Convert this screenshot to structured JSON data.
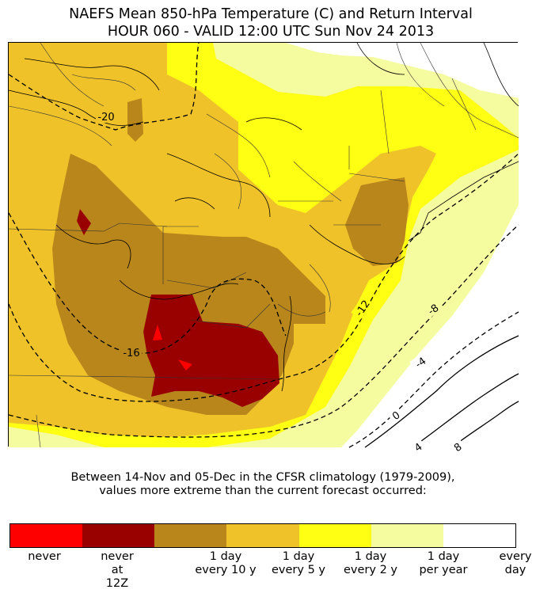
{
  "title": {
    "line1": "NAEFS Mean 850-hPa Temperature (C) and Return Interval",
    "line2": "HOUR 060 - VALID 12:00 UTC Sun Nov 24 2013"
  },
  "contour_labels": [
    "-20",
    "-16",
    "-12",
    "-8",
    "-4",
    "0",
    "4",
    "8"
  ],
  "caption": {
    "line1": "Between 14-Nov and 05-Dec in the CFSR climatology (1979-2009),",
    "line2": "values more extreme than the current forecast occurred:"
  },
  "colorbar": {
    "swatches": [
      "#ff0000",
      "#990000",
      "#b8861b",
      "#efc22a",
      "#ffff14",
      "#f5fca0",
      "#ffffff"
    ],
    "labels": [
      "never",
      "never\nat\n12Z",
      "1 day\nevery 10 y",
      "1 day\nevery 5 y",
      "1 day\nevery 2 y",
      "1 day\nper year",
      "every\nday"
    ]
  },
  "colors": {
    "never": "#ff0000",
    "never_at_12z": "#990000",
    "every_10y": "#b8861b",
    "every_5y": "#efc22a",
    "every_2y": "#ffff14",
    "per_year": "#f5fca0",
    "every_day": "#ffffff"
  }
}
